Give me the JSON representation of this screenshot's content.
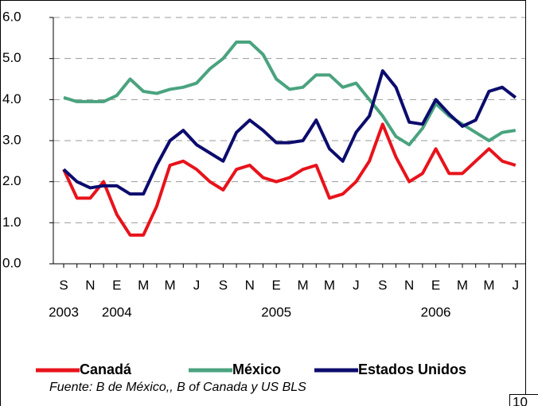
{
  "chart_data": {
    "type": "line",
    "categories": [
      "S",
      null,
      "N",
      null,
      "E",
      null,
      "M",
      null,
      "M",
      null,
      "J",
      null,
      "S",
      null,
      "N",
      null,
      "E",
      null,
      "M",
      null,
      "M",
      null,
      "J",
      null,
      "S",
      null,
      "N",
      null,
      "E",
      null,
      "M",
      null,
      "M",
      null,
      "J"
    ],
    "category_years": [
      "2003",
      null,
      null,
      null,
      "2004",
      null,
      null,
      null,
      null,
      null,
      null,
      null,
      null,
      null,
      null,
      null,
      "2005",
      null,
      null,
      null,
      null,
      null,
      null,
      null,
      null,
      null,
      null,
      null,
      "2006",
      null,
      null,
      null,
      null,
      null,
      null
    ],
    "series": [
      {
        "name": "Canadá",
        "color": "#e8131b",
        "values": [
          2.3,
          1.6,
          1.6,
          2.0,
          1.2,
          0.7,
          0.7,
          1.4,
          2.4,
          2.5,
          2.3,
          2.0,
          1.8,
          2.3,
          2.4,
          2.1,
          2.0,
          2.1,
          2.3,
          2.4,
          1.6,
          1.7,
          2.0,
          2.5,
          3.4,
          2.6,
          2.0,
          2.2,
          2.8,
          2.2,
          2.2,
          2.5,
          2.8,
          2.5,
          2.4
        ]
      },
      {
        "name": "México",
        "color": "#4aa37f",
        "values": [
          4.05,
          3.95,
          3.95,
          3.95,
          4.1,
          4.5,
          4.2,
          4.15,
          4.25,
          4.3,
          4.4,
          4.75,
          5.0,
          5.4,
          5.4,
          5.1,
          4.5,
          4.25,
          4.3,
          4.6,
          4.6,
          4.3,
          4.4,
          4.0,
          3.6,
          3.1,
          2.9,
          3.3,
          3.9,
          3.6,
          3.4,
          3.2,
          3.0,
          3.2,
          3.25
        ]
      },
      {
        "name": "Estados Unidos",
        "color": "#0c0c6e",
        "values": [
          2.3,
          2.0,
          1.85,
          1.9,
          1.9,
          1.7,
          1.7,
          2.4,
          3.0,
          3.25,
          2.9,
          2.7,
          2.5,
          3.2,
          3.5,
          3.25,
          2.95,
          2.95,
          3.0,
          3.5,
          2.8,
          2.5,
          3.2,
          3.6,
          4.7,
          4.3,
          3.45,
          3.4,
          4.0,
          3.65,
          3.35,
          3.5,
          4.2,
          4.3,
          4.05
        ]
      }
    ],
    "ylim": [
      0,
      6
    ],
    "yticks": [
      {
        "value": 0,
        "label": "0.0"
      },
      {
        "value": 1,
        "label": "1.0"
      },
      {
        "value": 2,
        "label": "2.0"
      },
      {
        "value": 3,
        "label": "3.0"
      },
      {
        "value": 4,
        "label": "4.0"
      },
      {
        "value": 5,
        "label": "5.0"
      },
      {
        "value": 6,
        "label": "6.0"
      }
    ],
    "grid": true,
    "source": "Fuente: B de México,, B of Canada y US BLS",
    "page_number": "10"
  }
}
